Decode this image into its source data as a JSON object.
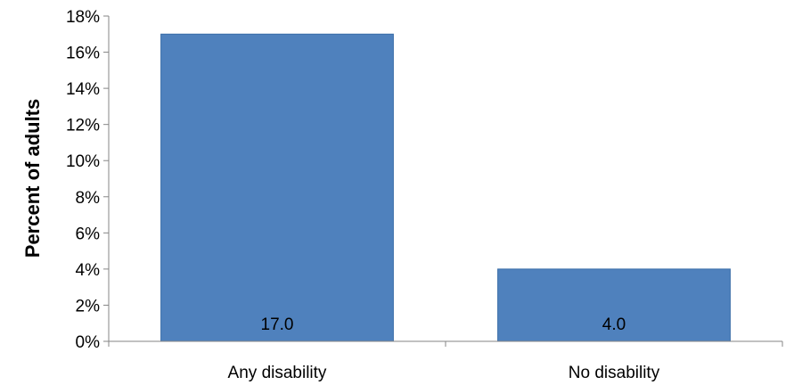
{
  "chart_data": {
    "type": "bar",
    "title": "",
    "xlabel": "",
    "ylabel": "Percent of adults",
    "categories": [
      "Any disability",
      "No disability"
    ],
    "values": [
      17.0,
      4.0
    ],
    "data_labels": [
      "17.0",
      "4.0"
    ],
    "ylim": [
      0,
      18
    ],
    "ytick_values": [
      0,
      2,
      4,
      6,
      8,
      10,
      12,
      14,
      16,
      18
    ],
    "ytick_labels": [
      "0%",
      "2%",
      "4%",
      "6%",
      "8%",
      "10%",
      "12%",
      "14%",
      "16%",
      "18%"
    ],
    "grid": false,
    "legend": "none",
    "bar_color": "#4F81BD",
    "bar_edge_color": "#3A6DA8"
  }
}
